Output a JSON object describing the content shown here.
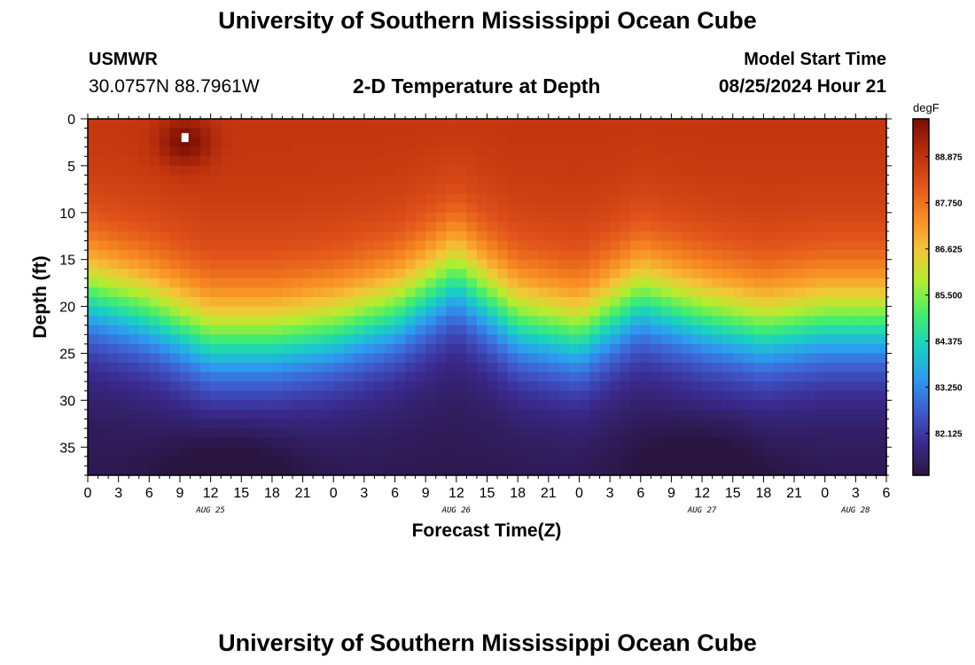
{
  "header": {
    "title": "University of Southern Mississippi Ocean Cube",
    "station_name": "USMWR",
    "station_coords": "30.0757N  88.7961W",
    "subtitle": "2-D Temperature at Depth",
    "model_start_label": "Model Start Time",
    "model_start_value": "08/25/2024 Hour 21"
  },
  "footer": {
    "title": "University of Southern Mississippi Ocean Cube"
  },
  "chart_data": {
    "type": "heatmap",
    "title": "2-D Temperature at Depth",
    "xlabel": "Forecast Time(Z)",
    "ylabel": "Depth (ft)",
    "x_unit": "hours since 08/25 00Z",
    "xlim": [
      0,
      78
    ],
    "ylim": [
      0,
      38
    ],
    "y_inverted": true,
    "x_tick_values": [
      0,
      3,
      6,
      9,
      12,
      15,
      18,
      21,
      24,
      27,
      30,
      33,
      36,
      39,
      42,
      45,
      48,
      51,
      54,
      57,
      60,
      63,
      66,
      69,
      72,
      75,
      78
    ],
    "x_tick_labels": [
      "0",
      "3",
      "6",
      "9",
      "12",
      "15",
      "18",
      "21",
      "0",
      "3",
      "6",
      "9",
      "12",
      "15",
      "18",
      "21",
      "0",
      "3",
      "6",
      "9",
      "12",
      "15",
      "18",
      "21",
      "0",
      "3",
      "6"
    ],
    "date_labels": [
      {
        "text": "AUG 25",
        "hour": 12
      },
      {
        "text": "AUG 26",
        "hour": 36
      },
      {
        "text": "AUG 27",
        "hour": 60
      },
      {
        "text": "AUG 28",
        "hour": 75
      }
    ],
    "y_ticks": [
      0,
      5,
      10,
      15,
      20,
      25,
      30,
      35
    ],
    "colorbar": {
      "unit": "degF",
      "min": 81.1,
      "max": 89.8,
      "tick_values": [
        82.125,
        83.25,
        84.375,
        85.5,
        86.625,
        87.75,
        88.875
      ],
      "tick_labels": [
        "82.125",
        "83.250",
        "84.375",
        "85.500",
        "86.625",
        "87.750",
        "88.875"
      ],
      "colors": [
        "#2a1540",
        "#3a2a8f",
        "#3f5dd0",
        "#2d9cf0",
        "#18d2c0",
        "#47ee6a",
        "#b5ee2e",
        "#f5c338",
        "#f88a22",
        "#e0521a",
        "#b82d0c",
        "#7a0e04"
      ]
    },
    "grid": {
      "cols": 78,
      "rows": 38
    },
    "profile": {
      "surface_temp": 88.8,
      "deep_temp": 81.6,
      "thermocline_depth_series": {
        "hours": [
          0,
          6,
          12,
          18,
          24,
          30,
          36,
          42,
          48,
          54,
          60,
          66,
          72,
          78
        ],
        "depth_ft": [
          15.5,
          17.5,
          20.5,
          20.5,
          19.5,
          17.5,
          13.5,
          18.5,
          20.0,
          16.0,
          18.0,
          19.5,
          18.5,
          18.5
        ]
      },
      "warm_spot": {
        "hour": 9.5,
        "depth_ft": 2.5,
        "temp": 89.8
      },
      "deep_cold_spots": [
        {
          "hour": 14,
          "temp": 81.1
        },
        {
          "hour": 60,
          "temp": 81.1
        }
      ]
    },
    "marker": {
      "hour": 9.5,
      "depth_ft": 2
    }
  }
}
